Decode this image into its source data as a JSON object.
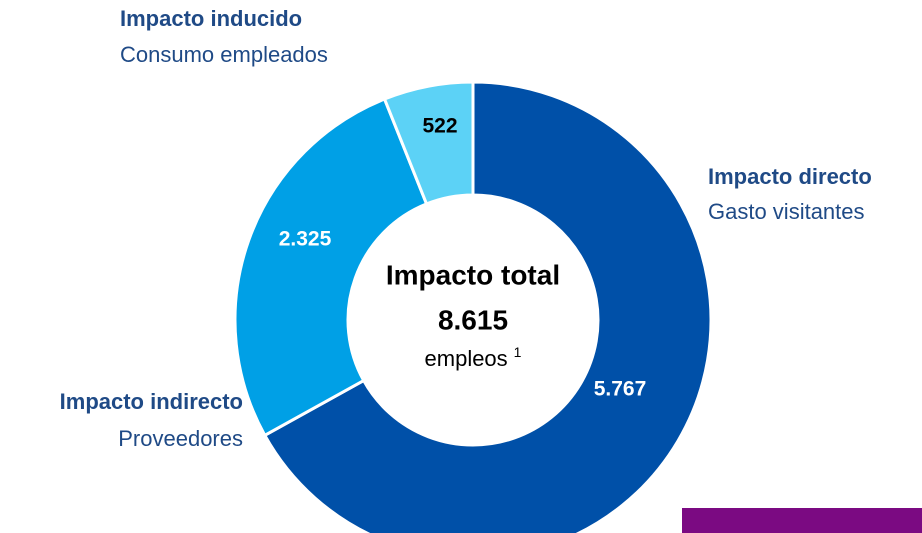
{
  "chart_data": {
    "type": "donut",
    "categories": [
      "Impacto directo",
      "Impacto indirecto",
      "Impacto inducido"
    ],
    "descriptions": [
      "Gasto visitantes",
      "Proveedores",
      "Consumo empleados"
    ],
    "values": [
      5767,
      2325,
      522
    ],
    "value_labels": [
      "5.767",
      "2.325",
      "522"
    ],
    "colors": [
      "#0050a8",
      "#00a0e6",
      "#5cd2f6"
    ],
    "center": {
      "title": "Impacto total",
      "total": "8.615",
      "unit": "empleos",
      "note": "1"
    }
  }
}
